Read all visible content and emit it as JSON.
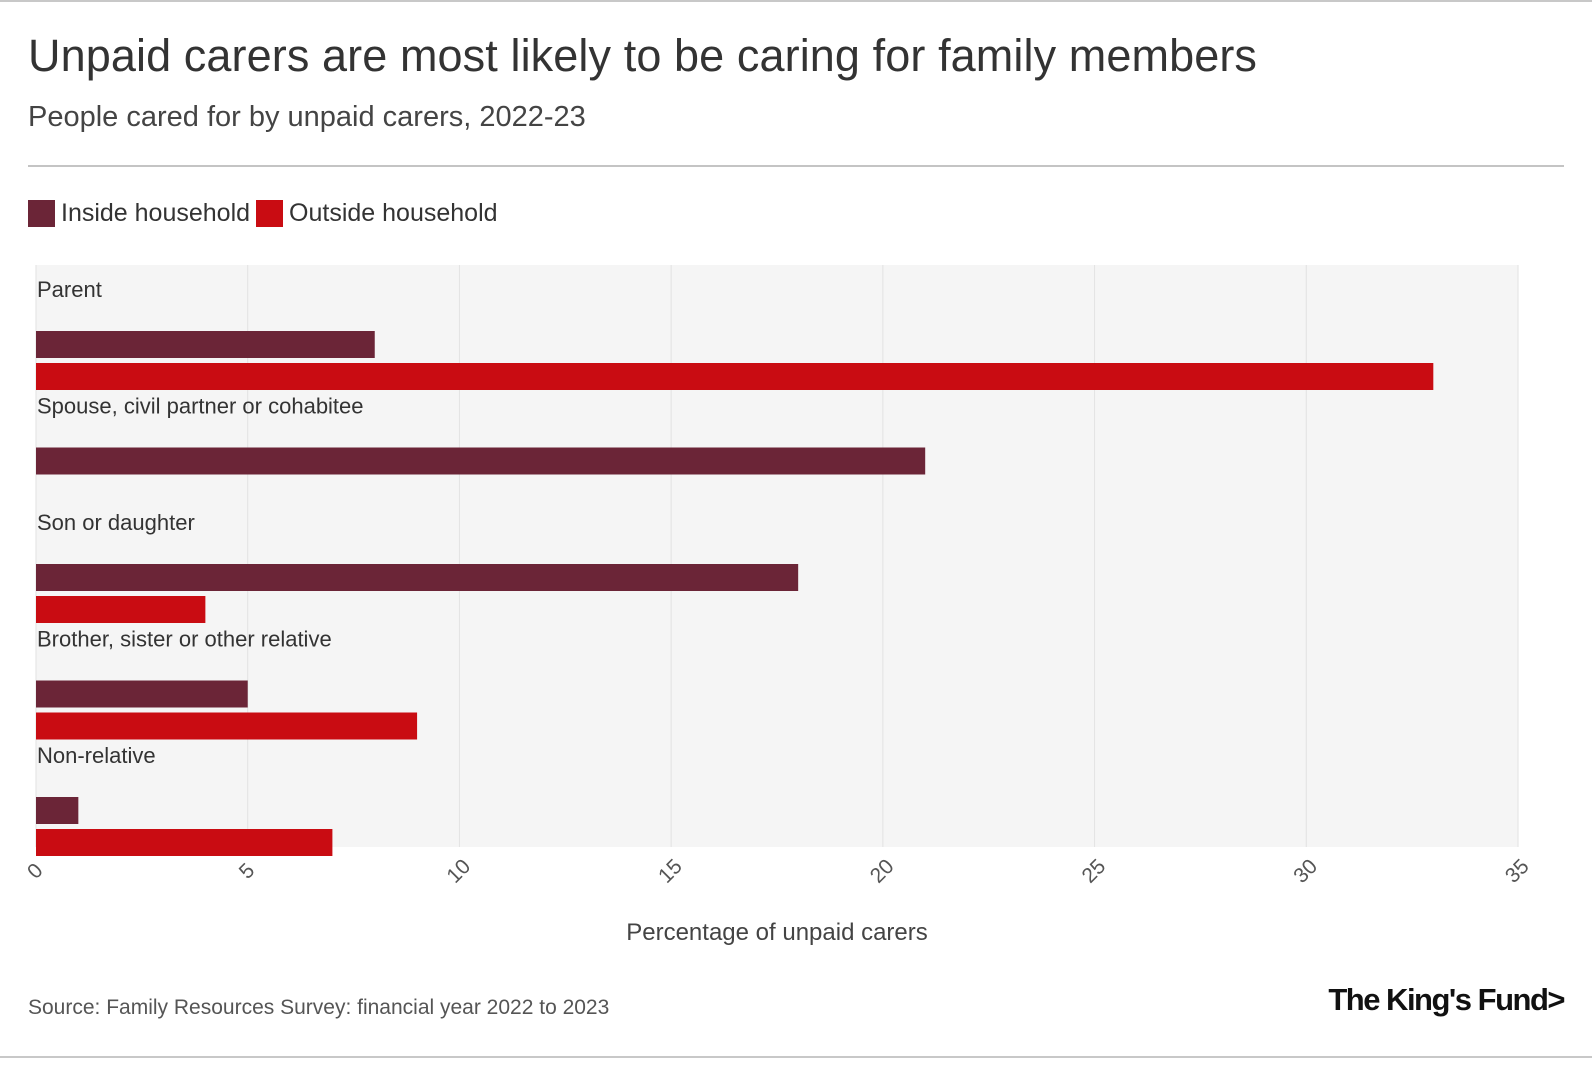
{
  "header": {
    "title": "Unpaid carers are most likely to be caring for family members",
    "subtitle": "People cared for by unpaid carers, 2022-23"
  },
  "legend": {
    "items": [
      {
        "label": "Inside household",
        "color": "#6b2537"
      },
      {
        "label": "Outside household",
        "color": "#c90c12"
      }
    ]
  },
  "chart_data": {
    "type": "bar",
    "orientation": "horizontal",
    "title": "Unpaid carers are most likely to be caring for family members",
    "subtitle": "People cared for by unpaid carers, 2022-23",
    "xlabel": "Percentage of unpaid carers",
    "ylabel": "",
    "xlim": [
      0,
      35
    ],
    "xticks": [
      0,
      5,
      10,
      15,
      20,
      25,
      30,
      35
    ],
    "grid": true,
    "legend_position": "top-left",
    "categories": [
      "Parent",
      "Spouse, civil partner or cohabitee",
      "Son or daughter",
      "Brother, sister or other relative",
      "Non-relative"
    ],
    "series": [
      {
        "name": "Inside household",
        "color": "#6b2537",
        "values": [
          8,
          21,
          18,
          5,
          1
        ]
      },
      {
        "name": "Outside household",
        "color": "#c90c12",
        "values": [
          33,
          0,
          4,
          9,
          7
        ]
      }
    ]
  },
  "footer": {
    "source": "Source: Family Resources Survey: financial year 2022 to 2023",
    "brand": "The King's Fund>"
  }
}
